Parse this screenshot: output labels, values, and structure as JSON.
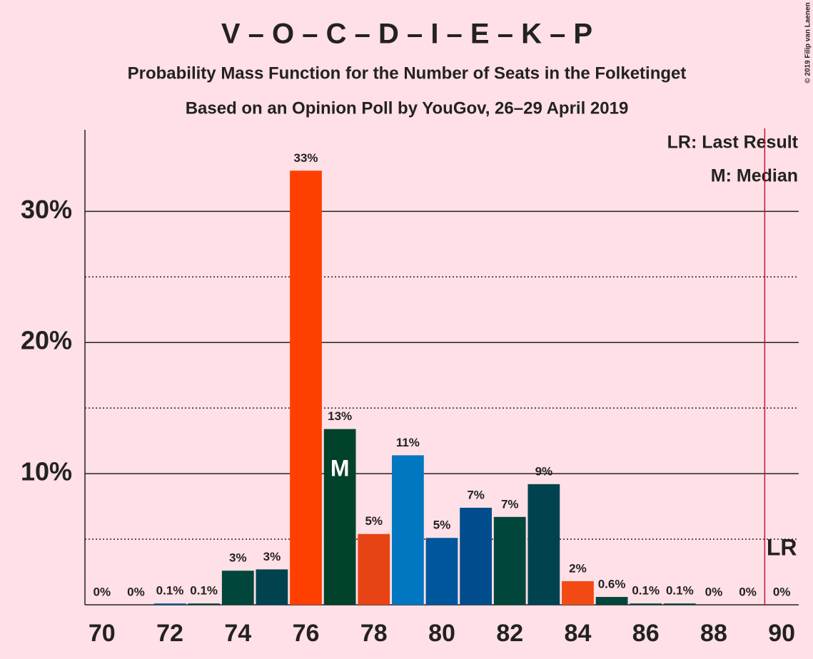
{
  "chart_data": {
    "type": "bar",
    "title": "V – O – C – D – I – E – K – P",
    "subtitle": "Probability Mass Function for the Number of Seats in the Folketinget",
    "subtitle2": "Based on an Opinion Poll by YouGov, 26–29 April 2019",
    "copyright": "© 2019 Filip van Laenen",
    "legend": [
      "LR: Last Result",
      "M: Median"
    ],
    "x": [
      70,
      71,
      72,
      73,
      74,
      75,
      76,
      77,
      78,
      79,
      80,
      81,
      82,
      83,
      84,
      85,
      86,
      87,
      88,
      89,
      90
    ],
    "values": [
      0,
      0,
      0.1,
      0.1,
      2.6,
      2.7,
      33.1,
      13.4,
      5.4,
      11.4,
      5.1,
      7.4,
      6.7,
      9.2,
      1.8,
      0.6,
      0.1,
      0.1,
      0,
      0,
      0
    ],
    "value_labels": [
      "0%",
      "0%",
      "0.1%",
      "0.1%",
      "3%",
      "3%",
      "33%",
      "13%",
      "5%",
      "11%",
      "5%",
      "7%",
      "7%",
      "9%",
      "2%",
      "0.6%",
      "0.1%",
      "0.1%",
      "0%",
      "0%",
      "0%"
    ],
    "colors": [
      "#00463a",
      "#00463a",
      "#00569a",
      "#00463a",
      "#00463a",
      "#00434f",
      "#ff3f00",
      "#00422a",
      "#e84314",
      "#0077c0",
      "#00569a",
      "#004c8c",
      "#00463a",
      "#00434f",
      "#f24a14",
      "#00463a",
      "#00463a",
      "#00463a",
      "#00463a",
      "#00463a",
      "#00463a"
    ],
    "median": 77,
    "median_label": "M",
    "last_result": 90,
    "last_result_label": "LR",
    "xlim": [
      69.5,
      90.5
    ],
    "xticks": [
      70,
      72,
      74,
      76,
      78,
      80,
      82,
      84,
      86,
      88,
      90
    ],
    "ylim": [
      0,
      36
    ],
    "yticks": [
      {
        "value": 10,
        "label": "10%"
      },
      {
        "value": 20,
        "label": "20%"
      },
      {
        "value": 30,
        "label": "30%"
      }
    ],
    "yticks_minor": [
      5,
      15,
      25
    ]
  }
}
